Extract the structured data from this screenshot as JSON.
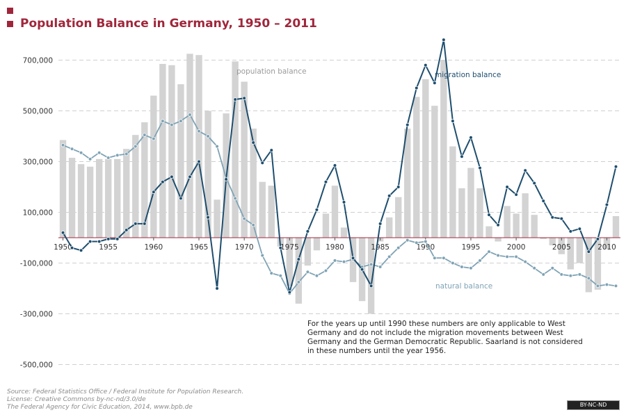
{
  "header": {
    "title": "Population Balance in Germany, 1950 – 2011"
  },
  "note": "For the years up until 1990 these numbers are only applicable to West Germany and do not include the migration movements between West Germany and the German Democratic Republic. Saarland is not considered in these numbers until the year 1956.",
  "footer": {
    "source": "Source: Federal Statistics Office / Federal Institute for Population Research.",
    "license": "License: Creative Commons by-nc-nd/3.0/de",
    "publisher": "The Federal Agency for Civic Education, 2014, www.bpb.de"
  },
  "cc_badge": "BY-NC-ND",
  "colors": {
    "accent": "#a0263b",
    "bars": "#d3d3d3",
    "migration": "#1e4e6e",
    "natural": "#7fa3b5"
  },
  "chart_data": {
    "type": "bar",
    "title": "Population Balance in Germany, 1950 – 2011",
    "xlabel": "",
    "ylabel": "",
    "ylim": [
      -500000,
      800000
    ],
    "yticks": [
      700000,
      500000,
      300000,
      100000,
      -100000,
      -300000,
      -500000
    ],
    "ytick_labels": [
      "700,000",
      "500,000",
      "300,000",
      "100,000",
      "-100,000",
      "-300,000",
      "-500,000"
    ],
    "xtick_years": [
      1950,
      1955,
      1960,
      1965,
      1970,
      1975,
      1980,
      1985,
      1990,
      1995,
      2000,
      2005,
      2010
    ],
    "grid": true,
    "x": [
      1950,
      1951,
      1952,
      1953,
      1954,
      1955,
      1956,
      1957,
      1958,
      1959,
      1960,
      1961,
      1962,
      1963,
      1964,
      1965,
      1966,
      1967,
      1968,
      1969,
      1970,
      1971,
      1972,
      1973,
      1974,
      1975,
      1976,
      1977,
      1978,
      1979,
      1980,
      1981,
      1982,
      1983,
      1984,
      1985,
      1986,
      1987,
      1988,
      1989,
      1990,
      1991,
      1992,
      1993,
      1994,
      1995,
      1996,
      1997,
      1998,
      1999,
      2000,
      2001,
      2002,
      2003,
      2004,
      2005,
      2006,
      2007,
      2008,
      2009,
      2010,
      2011
    ],
    "series": [
      {
        "name": "population balance",
        "kind": "bar",
        "values": [
          385000,
          315000,
          290000,
          280000,
          310000,
          310000,
          310000,
          350000,
          405000,
          455000,
          560000,
          685000,
          680000,
          605000,
          725000,
          720000,
          500000,
          150000,
          490000,
          695000,
          615000,
          430000,
          220000,
          205000,
          -35000,
          -190000,
          -260000,
          -110000,
          -50000,
          95000,
          205000,
          40000,
          -175000,
          -250000,
          -300000,
          -15000,
          80000,
          160000,
          430000,
          555000,
          625000,
          520000,
          700000,
          360000,
          195000,
          275000,
          195000,
          45000,
          -15000,
          125000,
          95000,
          175000,
          90000,
          -5000,
          -30000,
          -65000,
          -125000,
          -100000,
          -215000,
          -205000,
          -45000,
          85000
        ]
      },
      {
        "name": "migration balance",
        "kind": "line",
        "values": [
          20000,
          -40000,
          -50000,
          -15000,
          -15000,
          -5000,
          -5000,
          30000,
          55000,
          55000,
          180000,
          220000,
          240000,
          155000,
          240000,
          300000,
          80000,
          -200000,
          230000,
          545000,
          550000,
          375000,
          295000,
          345000,
          -40000,
          -215000,
          -85000,
          25000,
          110000,
          220000,
          285000,
          140000,
          -80000,
          -125000,
          -190000,
          55000,
          165000,
          200000,
          445000,
          590000,
          680000,
          610000,
          780000,
          460000,
          320000,
          395000,
          275000,
          90000,
          50000,
          200000,
          170000,
          265000,
          215000,
          145000,
          80000,
          75000,
          25000,
          35000,
          -55000,
          -5000,
          130000,
          280000
        ]
      },
      {
        "name": "natural balance",
        "kind": "line",
        "values": [
          365000,
          350000,
          335000,
          310000,
          335000,
          315000,
          325000,
          330000,
          360000,
          405000,
          390000,
          460000,
          445000,
          460000,
          485000,
          420000,
          400000,
          360000,
          235000,
          155000,
          75000,
          50000,
          -70000,
          -140000,
          -150000,
          -220000,
          -175000,
          -135000,
          -150000,
          -130000,
          -90000,
          -95000,
          -85000,
          -115000,
          -105000,
          -115000,
          -75000,
          -40000,
          -10000,
          -20000,
          -15000,
          -80000,
          -80000,
          -100000,
          -115000,
          -120000,
          -90000,
          -55000,
          -70000,
          -75000,
          -75000,
          -95000,
          -120000,
          -145000,
          -120000,
          -145000,
          -150000,
          -145000,
          -160000,
          -190000,
          -185000,
          -190000
        ]
      }
    ],
    "annotations": [
      "population balance",
      "migration balance",
      "natural balance"
    ]
  }
}
